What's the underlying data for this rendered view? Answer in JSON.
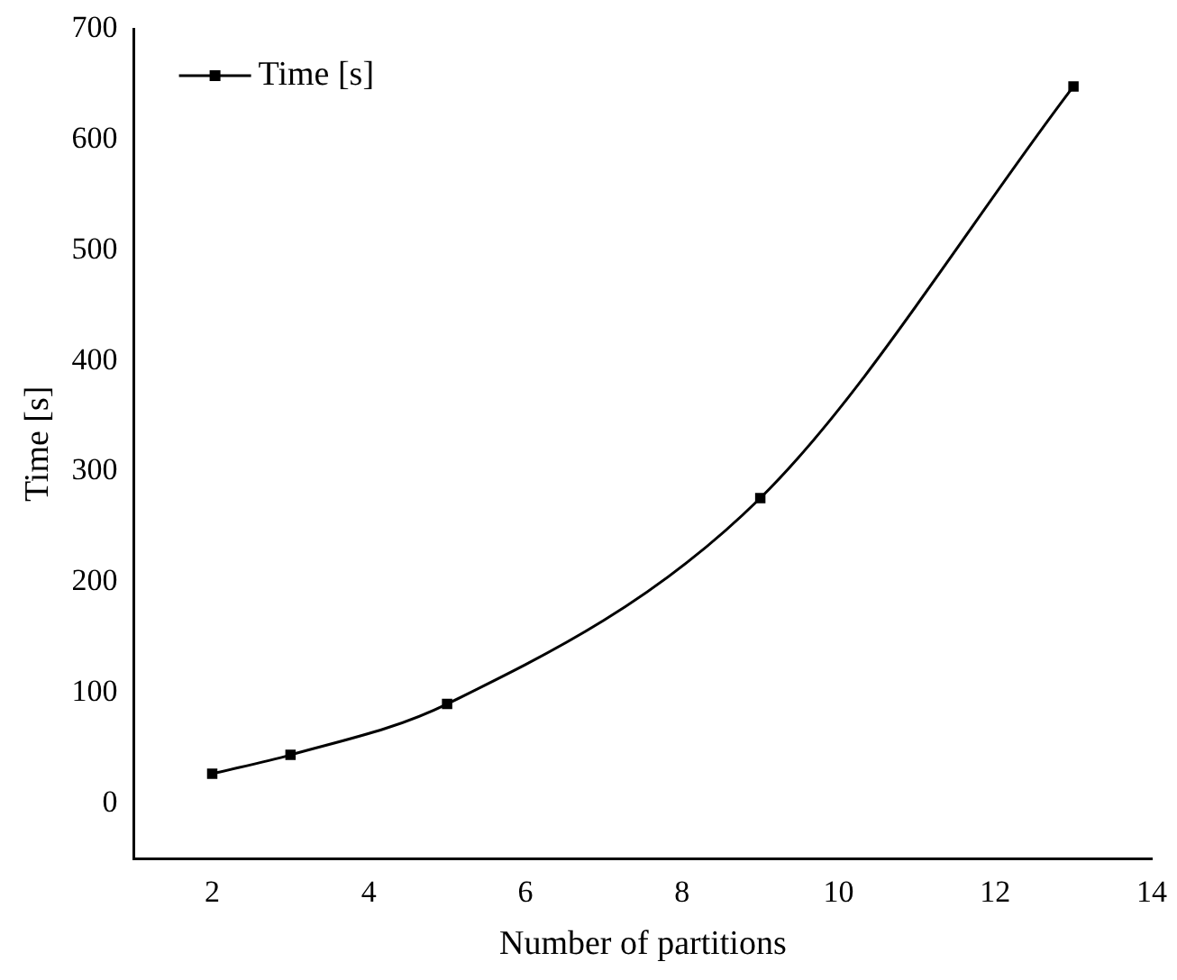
{
  "chart_data": {
    "type": "line",
    "xlabel": "Number of partitions",
    "ylabel": "Time [s]",
    "x": [
      2,
      3,
      5,
      9,
      13
    ],
    "series": [
      {
        "name": "Time [s]",
        "color": "#000000",
        "values": [
          27,
          44,
          90,
          276,
          648
        ]
      }
    ],
    "xlim": [
      1,
      14
    ],
    "xticks": [
      2,
      4,
      6,
      8,
      10,
      12,
      14
    ],
    "ylim": [
      -50,
      700
    ],
    "yticks": [
      0,
      100,
      200,
      300,
      400,
      500,
      600,
      700
    ],
    "grid": false,
    "legend": "top left",
    "marker": "square",
    "line_style": "solid"
  }
}
